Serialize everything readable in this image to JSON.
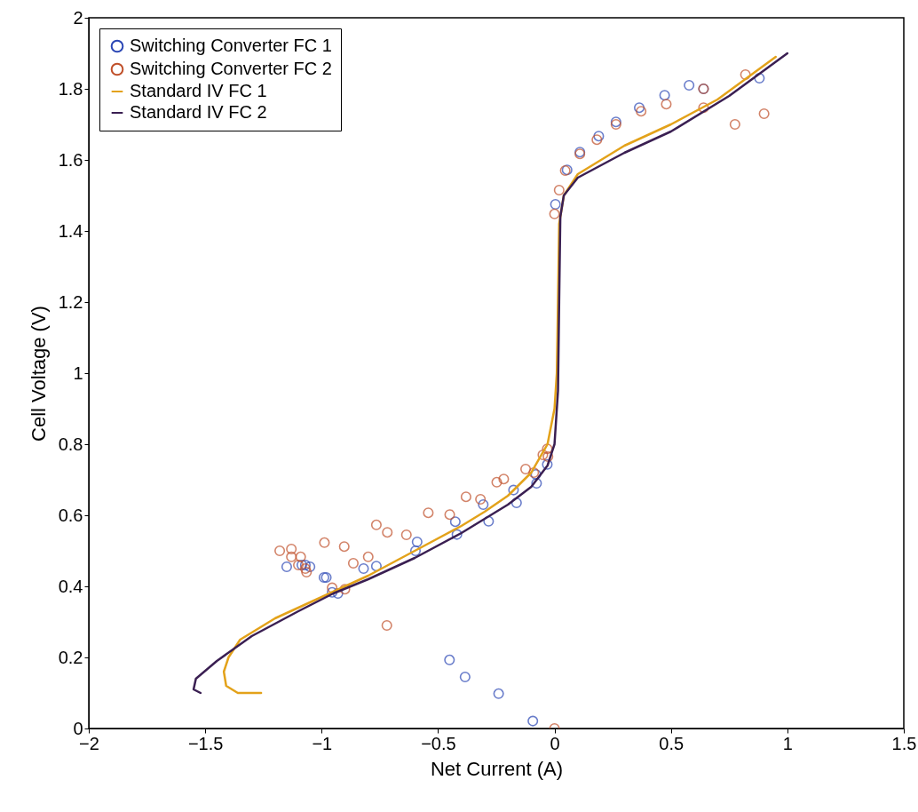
{
  "chart_data": {
    "type": "scatter",
    "xlabel": "Net Current (A)",
    "ylabel": "Cell Voltage (V)",
    "xlim": [
      -2,
      1.5
    ],
    "xticks": [
      -2,
      -1.5,
      -1,
      -0.5,
      0,
      0.5,
      1,
      1.5
    ],
    "ylim": [
      0,
      2
    ],
    "yticks": [
      0,
      0.2,
      0.4,
      0.6,
      0.8,
      1,
      1.2,
      1.4,
      1.6,
      1.8,
      2
    ],
    "legend": "top left",
    "marker": "circle",
    "grid": false,
    "series": [
      {
        "name": "Switching Converter FC 1",
        "color": "#2b47b5",
        "x": [
          -1.15,
          -1.085,
          -1.07,
          -1.05,
          -0.99,
          -0.98,
          -0.955,
          -0.93,
          -0.82,
          -0.765,
          -0.597,
          -0.59,
          -0.426,
          -0.419,
          -0.306,
          -0.283,
          -0.176,
          -0.163,
          -0.077,
          -0.08,
          -0.031,
          -0.451,
          -0.384,
          -0.24,
          -0.093,
          0.004,
          0.054,
          0.109,
          0.19,
          0.264,
          0.364,
          0.473,
          0.578,
          0.64,
          0.88
        ],
        "values": [
          0.455,
          0.46,
          0.46,
          0.455,
          0.425,
          0.425,
          0.383,
          0.38,
          0.45,
          0.457,
          0.5,
          0.525,
          0.582,
          0.546,
          0.63,
          0.583,
          0.671,
          0.635,
          0.69,
          0.715,
          0.743,
          0.193,
          0.145,
          0.098,
          0.021,
          1.475,
          1.572,
          1.622,
          1.667,
          1.707,
          1.747,
          1.782,
          1.81,
          1.8,
          1.83
        ]
      },
      {
        "name": "Switching Converter FC 2",
        "color": "#c0502a",
        "x": [
          -1.18,
          -1.13,
          -1.13,
          -1.09,
          -1.1,
          -1.07,
          -1.065,
          -0.988,
          -0.903,
          -0.955,
          -0.9,
          -0.864,
          -0.8,
          -0.765,
          -0.718,
          -0.72,
          -0.636,
          -0.542,
          -0.45,
          -0.38,
          -0.318,
          -0.248,
          -0.218,
          -0.124,
          -0.089,
          -0.05,
          -0.031,
          -0.028,
          0,
          0.0,
          0.02,
          0.046,
          0.109,
          0.182,
          0.264,
          0.372,
          0.48,
          0.64,
          0.64,
          0.775,
          0.82,
          0.9
        ],
        "values": [
          0.5,
          0.505,
          0.483,
          0.483,
          0.46,
          0.45,
          0.44,
          0.523,
          0.512,
          0.396,
          0.392,
          0.465,
          0.483,
          0.573,
          0.552,
          0.29,
          0.545,
          0.607,
          0.602,
          0.652,
          0.645,
          0.693,
          0.702,
          0.73,
          0.72,
          0.77,
          0.787,
          0.765,
          0,
          1.448,
          1.515,
          1.57,
          1.617,
          1.657,
          1.7,
          1.737,
          1.757,
          1.747,
          1.8,
          1.7,
          1.84,
          1.73
        ]
      },
      {
        "name": "Standard IV FC 1",
        "type": "line",
        "marker": "none",
        "color": "#e3a21a",
        "x": [
          -1.26,
          -1.36,
          -1.41,
          -1.42,
          -1.4,
          -1.35,
          -1.2,
          -1.0,
          -0.8,
          -0.6,
          -0.4,
          -0.3,
          -0.2,
          -0.1,
          -0.03,
          0,
          0.01,
          0.015,
          0.02,
          0.04,
          0.1,
          0.3,
          0.5,
          0.7,
          0.95
        ],
        "values": [
          0.1,
          0.1,
          0.12,
          0.16,
          0.2,
          0.25,
          0.31,
          0.37,
          0.43,
          0.5,
          0.57,
          0.61,
          0.655,
          0.72,
          0.8,
          0.9,
          1.0,
          1.2,
          1.42,
          1.5,
          1.56,
          1.64,
          1.7,
          1.77,
          1.89
        ]
      },
      {
        "name": "Standard IV FC 2",
        "type": "line",
        "marker": "none",
        "color": "#3a1f52",
        "x": [
          -1.52,
          -1.55,
          -1.54,
          -1.45,
          -1.3,
          -1.1,
          -0.95,
          -0.8,
          -0.6,
          -0.4,
          -0.2,
          -0.1,
          -0.03,
          0.0,
          0.015,
          0.02,
          0.025,
          0.04,
          0.1,
          0.3,
          0.5,
          0.75,
          1.0
        ],
        "values": [
          0.1,
          0.11,
          0.14,
          0.19,
          0.26,
          0.33,
          0.38,
          0.42,
          0.48,
          0.55,
          0.63,
          0.68,
          0.74,
          0.8,
          0.95,
          1.2,
          1.44,
          1.5,
          1.55,
          1.62,
          1.68,
          1.78,
          1.9
        ]
      }
    ]
  }
}
